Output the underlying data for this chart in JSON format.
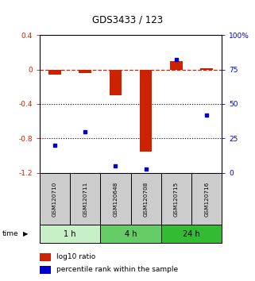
{
  "title": "GDS3433 / 123",
  "samples": [
    "GSM120710",
    "GSM120711",
    "GSM120648",
    "GSM120708",
    "GSM120715",
    "GSM120716"
  ],
  "log10_ratio": [
    -0.055,
    -0.04,
    -0.3,
    -0.95,
    0.1,
    0.018
  ],
  "percentile_rank": [
    20,
    30,
    5,
    3,
    82,
    42
  ],
  "groups": [
    {
      "label": "1 h",
      "start": 0,
      "end": 2,
      "color": "#c8f0c8"
    },
    {
      "label": "4 h",
      "start": 2,
      "end": 4,
      "color": "#66cc66"
    },
    {
      "label": "24 h",
      "start": 4,
      "end": 6,
      "color": "#33bb33"
    }
  ],
  "left_ylim": [
    -1.2,
    0.4
  ],
  "right_ylim": [
    0,
    100
  ],
  "left_yticks": [
    -1.2,
    -0.8,
    -0.4,
    0.0,
    0.4
  ],
  "left_yticklabels": [
    "-1.2",
    "-0.8",
    "-0.4",
    "0",
    "0.4"
  ],
  "right_yticks": [
    0,
    25,
    50,
    75,
    100
  ],
  "right_yticklabels": [
    "0",
    "25",
    "50",
    "75",
    "100%"
  ],
  "bar_color": "#cc2200",
  "dot_color": "#0000cc",
  "dashed_line_color": "#cc2200",
  "grid_color": "#000000",
  "background_chart": "#ffffff",
  "sample_box_color": "#cccccc",
  "legend_log10": "log10 ratio",
  "legend_percentile": "percentile rank within the sample",
  "time_label": "time"
}
